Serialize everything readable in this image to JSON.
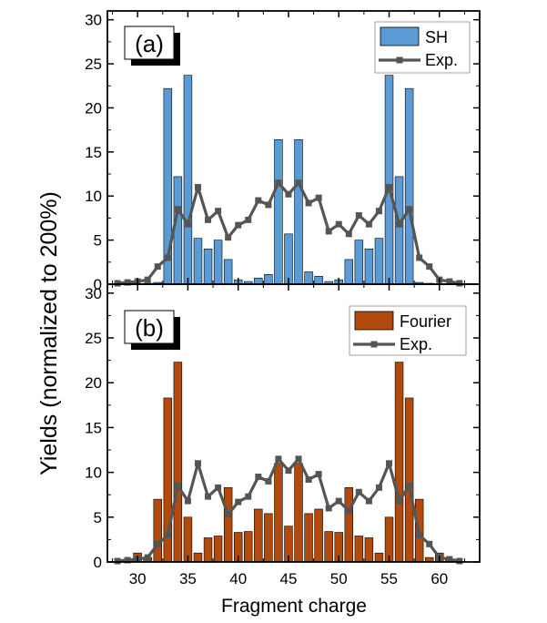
{
  "figure": {
    "ylabel": "Yields (normalized to 200%)",
    "xlabel": "Fragment charge",
    "xticks": [
      30,
      35,
      40,
      45,
      50,
      55,
      60
    ],
    "yticks": [
      0,
      5,
      10,
      15,
      20,
      25,
      30
    ]
  },
  "chart_data": [
    {
      "type": "bar",
      "panel_label": "(a)",
      "xlim": [
        27,
        64
      ],
      "ylim": [
        0,
        31
      ],
      "x": [
        27,
        28,
        29,
        30,
        31,
        32,
        33,
        34,
        35,
        36,
        37,
        38,
        39,
        40,
        41,
        42,
        43,
        44,
        45,
        46,
        47,
        48,
        49,
        50,
        51,
        52,
        53,
        54,
        55,
        56,
        57,
        58,
        59,
        60,
        61,
        62,
        63
      ],
      "series": [
        {
          "name": "SH",
          "kind": "bar",
          "color": "#5b9bd5",
          "values": [
            0,
            0,
            0,
            0,
            0.1,
            0.2,
            22.2,
            12.2,
            23.7,
            5.2,
            4.0,
            5.0,
            2.8,
            0.5,
            0.3,
            0.7,
            1.1,
            16.4,
            5.7,
            16.4,
            1.4,
            0.9,
            0.3,
            0.5,
            2.8,
            5.0,
            4.0,
            5.2,
            23.7,
            12.2,
            22.2,
            0.2,
            0.1,
            0,
            0,
            0,
            0
          ]
        },
        {
          "name": "Exp.",
          "kind": "line",
          "color": "#555555",
          "x": [
            28,
            29,
            30,
            31,
            32,
            33,
            34,
            35,
            36,
            37,
            38,
            39,
            40,
            41,
            42,
            43,
            44,
            45,
            46,
            47,
            48,
            49,
            50,
            51,
            52,
            53,
            54,
            55,
            56,
            57,
            58,
            59,
            60,
            61,
            62
          ],
          "values": [
            0.1,
            0.2,
            0.3,
            0.5,
            2.0,
            3.0,
            8.5,
            6.8,
            11.0,
            7.3,
            8.3,
            5.3,
            6.7,
            7.3,
            9.5,
            9.0,
            11.5,
            10.2,
            11.5,
            9.2,
            9.8,
            6.0,
            6.8,
            5.7,
            7.8,
            6.8,
            8.3,
            11.0,
            6.8,
            8.5,
            3.0,
            2.0,
            0.5,
            0.3,
            0.1
          ]
        }
      ]
    },
    {
      "type": "bar",
      "panel_label": "(b)",
      "xlim": [
        27,
        64
      ],
      "ylim": [
        0,
        31
      ],
      "x": [
        27,
        28,
        29,
        30,
        31,
        32,
        33,
        34,
        35,
        36,
        37,
        38,
        39,
        40,
        41,
        42,
        43,
        44,
        45,
        46,
        47,
        48,
        49,
        50,
        51,
        52,
        53,
        54,
        55,
        56,
        57,
        58,
        59,
        60,
        61,
        62,
        63
      ],
      "series": [
        {
          "name": "Fourier",
          "kind": "bar",
          "color": "#b34a0d",
          "values": [
            0,
            0,
            0.3,
            1.0,
            0.5,
            7.0,
            18.3,
            22.3,
            5.0,
            1.0,
            2.7,
            2.9,
            8.3,
            3.3,
            3.4,
            5.9,
            5.4,
            11.0,
            4.0,
            11.0,
            5.4,
            5.9,
            3.4,
            3.3,
            8.3,
            2.9,
            2.7,
            1.0,
            5.0,
            22.3,
            18.3,
            7.0,
            0.5,
            1.0,
            0.3,
            0,
            0
          ]
        },
        {
          "name": "Exp.",
          "kind": "line",
          "color": "#555555",
          "x": [
            28,
            29,
            30,
            31,
            32,
            33,
            34,
            35,
            36,
            37,
            38,
            39,
            40,
            41,
            42,
            43,
            44,
            45,
            46,
            47,
            48,
            49,
            50,
            51,
            52,
            53,
            54,
            55,
            56,
            57,
            58,
            59,
            60,
            61,
            62
          ],
          "values": [
            0.1,
            0.2,
            0.3,
            0.5,
            2.0,
            3.0,
            8.5,
            6.8,
            11.0,
            7.3,
            8.3,
            5.3,
            6.7,
            7.3,
            9.5,
            9.0,
            11.5,
            10.2,
            11.5,
            9.2,
            9.8,
            6.0,
            6.8,
            5.7,
            7.8,
            6.8,
            8.3,
            11.0,
            6.8,
            8.5,
            3.0,
            2.0,
            0.5,
            0.3,
            0.1
          ]
        }
      ]
    }
  ]
}
